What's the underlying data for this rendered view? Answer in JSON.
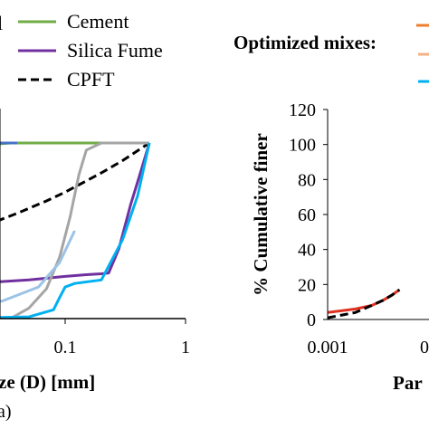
{
  "chart_data": [
    {
      "type": "line",
      "xscale": "log",
      "xlim": [
        0.001,
        1
      ],
      "ylim": [
        0,
        100
      ],
      "xtick_labels": [
        "0.1",
        "1"
      ],
      "xlabel_visible": "ze (D) [mm]",
      "panel_label": "a)",
      "legend": [
        "Cement",
        "Silica Fume",
        "CPFT"
      ],
      "series": [
        {
          "name": "Cement",
          "color": "#70AD47",
          "dash": "solid",
          "points": [
            [
              0.004,
              70
            ],
            [
              0.007,
              80
            ],
            [
              0.011,
              89
            ],
            [
              0.016,
              95
            ],
            [
              0.023,
              99
            ],
            [
              0.035,
              100
            ],
            [
              0.1,
              100
            ],
            [
              0.3,
              100
            ],
            [
              0.5,
              100
            ]
          ]
        },
        {
          "name": "Silica Fume",
          "color": "#7030A0",
          "dash": "solid",
          "points": [
            [
              0.001,
              17
            ],
            [
              0.01,
              19
            ],
            [
              0.05,
              22
            ],
            [
              0.1,
              24
            ],
            [
              0.15,
              25
            ],
            [
              0.2,
              25.5
            ],
            [
              0.23,
              26
            ],
            [
              0.28,
              40
            ],
            [
              0.35,
              65
            ],
            [
              0.43,
              85
            ],
            [
              0.5,
              100
            ]
          ]
        },
        {
          "name": "CPFT",
          "color": "#000000",
          "dash": "dashed",
          "points": [
            [
              0.001,
              32
            ],
            [
              0.004,
              40
            ],
            [
              0.01,
              46
            ],
            [
              0.02,
              52
            ],
            [
              0.04,
              60
            ],
            [
              0.07,
              67
            ],
            [
              0.1,
              72
            ],
            [
              0.2,
              83
            ],
            [
              0.3,
              90
            ],
            [
              0.5,
              100
            ]
          ]
        },
        {
          "name": "",
          "color": "#4472C4",
          "dash": "solid",
          "points": [
            [
              0.001,
              60
            ],
            [
              0.004,
              75
            ],
            [
              0.008,
              87
            ],
            [
              0.012,
              94
            ],
            [
              0.018,
              98
            ],
            [
              0.025,
              100
            ],
            [
              0.04,
              100
            ]
          ]
        },
        {
          "name": "",
          "color": "#A5A5A5",
          "dash": "solid",
          "points": [
            [
              0.035,
              0
            ],
            [
              0.05,
              6
            ],
            [
              0.07,
              17
            ],
            [
              0.09,
              35
            ],
            [
              0.11,
              58
            ],
            [
              0.13,
              82
            ],
            [
              0.15,
              96
            ],
            [
              0.2,
              100
            ],
            [
              0.5,
              100
            ]
          ]
        },
        {
          "name": "",
          "color": "#9BC3E6",
          "dash": "solid",
          "points": [
            [
              0.003,
              5
            ],
            [
              0.01,
              6
            ],
            [
              0.03,
              10
            ],
            [
              0.06,
              18
            ],
            [
              0.09,
              32
            ],
            [
              0.12,
              50
            ]
          ]
        },
        {
          "name": "",
          "color": "#00B0F0",
          "dash": "solid",
          "points": [
            [
              0.001,
              0
            ],
            [
              0.01,
              0
            ],
            [
              0.05,
              1
            ],
            [
              0.08,
              5
            ],
            [
              0.09,
              12
            ],
            [
              0.1,
              18
            ],
            [
              0.12,
              20
            ],
            [
              0.2,
              22
            ],
            [
              0.3,
              45
            ],
            [
              0.4,
              70
            ],
            [
              0.5,
              100
            ]
          ]
        }
      ]
    },
    {
      "type": "line",
      "xscale": "log",
      "xlim": [
        0.001,
        1
      ],
      "ylim": [
        0,
        120
      ],
      "yticks": [
        0,
        20,
        40,
        60,
        80,
        100,
        120
      ],
      "xtick_labels": [
        "0.001",
        "0"
      ],
      "ylabel": "% Cumulative finer",
      "xlabel_visible": "Par",
      "legend_title": "Optimized mixes:",
      "series": [
        {
          "name": "",
          "color": "#E03020",
          "dash": "solid",
          "points": [
            [
              0.001,
              4
            ],
            [
              0.002,
              6
            ],
            [
              0.003,
              8
            ],
            [
              0.004,
              11
            ],
            [
              0.005,
              14
            ],
            [
              0.006,
              17
            ]
          ]
        },
        {
          "name": "",
          "color": "#000000",
          "dash": "dashed",
          "points": [
            [
              0.001,
              1
            ],
            [
              0.002,
              4
            ],
            [
              0.003,
              8
            ],
            [
              0.004,
              11
            ],
            [
              0.005,
              14
            ],
            [
              0.006,
              17
            ]
          ]
        }
      ],
      "legend_swatches": [
        "#ED7D31",
        "#F4B183",
        "#00B0F0"
      ]
    }
  ]
}
